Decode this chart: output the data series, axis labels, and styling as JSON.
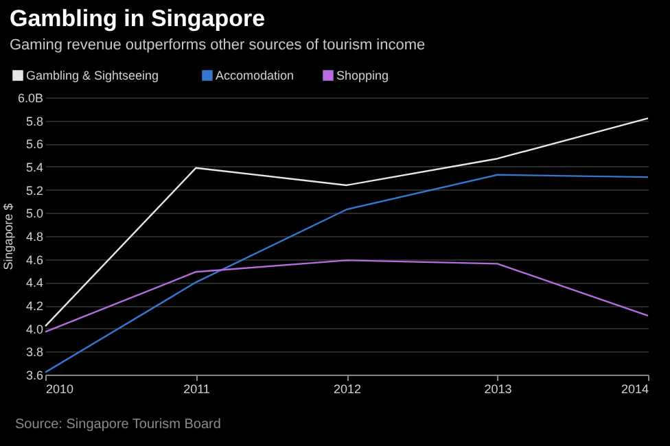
{
  "chart_data": {
    "type": "line",
    "title": "Gambling in Singapore",
    "subtitle": "Gaming revenue outperforms other sources of tourism income",
    "ylabel": "Singapore $",
    "x": [
      2010,
      2011,
      2012,
      2013,
      2014
    ],
    "series": [
      {
        "name": "Gambling & Sightseeing",
        "color": "#e6e6e6",
        "values": [
          4.02,
          5.39,
          5.24,
          5.47,
          5.82
        ]
      },
      {
        "name": "Accomodation",
        "color": "#3478d0",
        "values": [
          3.62,
          4.4,
          5.03,
          5.33,
          5.31
        ]
      },
      {
        "name": "Shopping",
        "color": "#b46ee0",
        "values": [
          3.97,
          4.49,
          4.59,
          4.56,
          4.11
        ]
      }
    ],
    "xlim": [
      2010,
      2014
    ],
    "xticks": [
      2010,
      2011,
      2012,
      2013,
      2014
    ],
    "ylim": [
      3.6,
      6.0
    ],
    "yticks": [
      3.6,
      3.8,
      {
        "value": 4,
        "label": "4.0"
      },
      4.2,
      4.4,
      4.6,
      4.8,
      {
        "value": 5,
        "label": "5.0"
      },
      5.2,
      5.4,
      5.6,
      5.8,
      {
        "value": 6.0,
        "label": "6.0B"
      }
    ],
    "grid": "y",
    "legend": "top left",
    "marker": "none",
    "line_style": "solid",
    "annotations": [
      "Source: Singapore Tourism Board"
    ]
  }
}
